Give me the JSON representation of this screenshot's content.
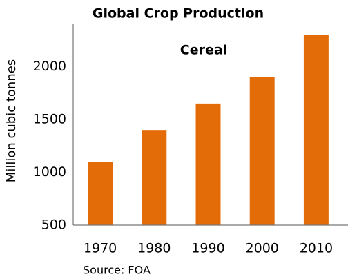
{
  "chart_data": {
    "type": "bar",
    "title": "Global Crop Production",
    "subtitle": "Cereal",
    "y_label": "Million cubic tonnes",
    "source": "Source: FOA",
    "categories": [
      "1970",
      "1980",
      "1990",
      "2000",
      "2010"
    ],
    "values": [
      1100,
      1400,
      1650,
      1900,
      2300
    ],
    "color": "#e36c09",
    "ylim": [
      500,
      2400
    ],
    "yticks": [
      500,
      1000,
      1500,
      2000
    ],
    "grid": false
  }
}
